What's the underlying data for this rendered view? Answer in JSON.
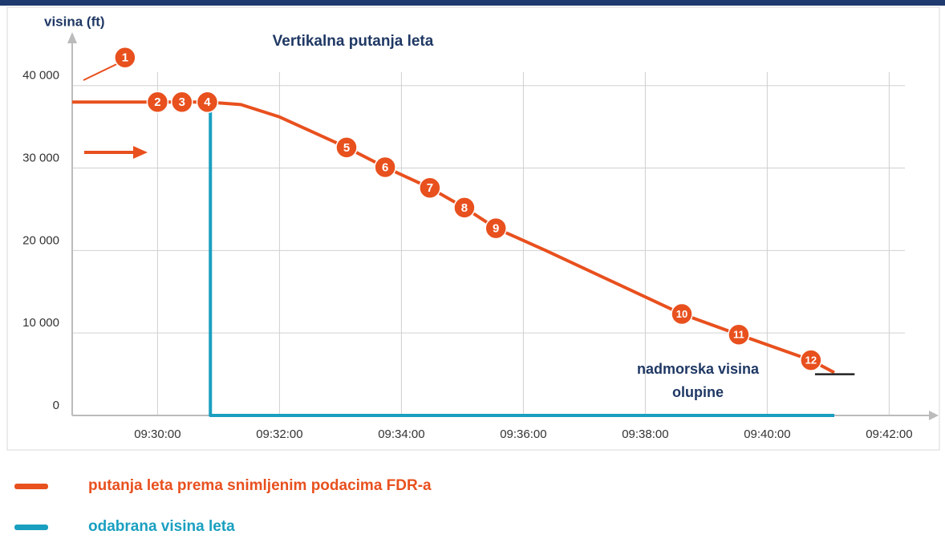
{
  "chart_data": {
    "type": "line",
    "title": "Vertikalna putanja leta",
    "y_label": "visina (ft)",
    "xlim": [
      "09:28:36",
      "09:42:36"
    ],
    "xticks": [
      "09:30:00",
      "09:32:00",
      "09:34:00",
      "09:36:00",
      "09:38:00",
      "09:40:00",
      "09:42:00"
    ],
    "ylim": [
      0,
      46000
    ],
    "yticks": [
      0,
      {
        "value": 10000,
        "label": "10 000"
      },
      {
        "value": 20000,
        "label": "20 000"
      },
      {
        "value": 30000,
        "label": "30 000"
      },
      {
        "value": 40000,
        "label": "40 000"
      }
    ],
    "grid": true,
    "series": [
      {
        "name": "putanja leta prema snimljenim podacima FDR-a",
        "color": "#e8501e",
        "x": [
          "09:28:36",
          "09:30:49",
          "09:31:22",
          "09:32:00",
          "09:33:06",
          "09:33:44",
          "09:34:28",
          "09:35:02",
          "09:35:33",
          "09:36:22",
          "09:38:36",
          "09:39:32",
          "09:40:43",
          "09:41:06"
        ],
        "values": [
          38000,
          38000,
          37700,
          36200,
          32500,
          30100,
          27600,
          25200,
          22700,
          20000,
          12300,
          9800,
          6700,
          5200
        ]
      },
      {
        "name": "odabrana visina leta",
        "color": "#1a9fc0",
        "x": [
          "09:30:52",
          "09:30:52",
          "09:41:06"
        ],
        "values": [
          38000,
          0,
          0
        ]
      }
    ],
    "markers": [
      {
        "label": "1",
        "x": "09:29:28",
        "y": 43400
      },
      {
        "label": "2",
        "x": "09:30:00",
        "y": 38000
      },
      {
        "label": "3",
        "x": "09:30:24",
        "y": 38000
      },
      {
        "label": "4",
        "x": "09:30:49",
        "y": 38000
      },
      {
        "label": "5",
        "x": "09:33:06",
        "y": 32500
      },
      {
        "label": "6",
        "x": "09:33:44",
        "y": 30100
      },
      {
        "label": "7",
        "x": "09:34:28",
        "y": 27600
      },
      {
        "label": "8",
        "x": "09:35:02",
        "y": 25200
      },
      {
        "label": "9",
        "x": "09:35:33",
        "y": 22700
      },
      {
        "label": "10",
        "x": "09:38:36",
        "y": 12300
      },
      {
        "label": "11",
        "x": "09:39:32",
        "y": 9800
      },
      {
        "label": "12",
        "x": "09:40:43",
        "y": 6700
      }
    ],
    "wreck": {
      "label": [
        "nadmorska visina",
        "olupine"
      ],
      "value": 5000,
      "x": [
        "09:40:47",
        "09:41:26"
      ]
    }
  }
}
